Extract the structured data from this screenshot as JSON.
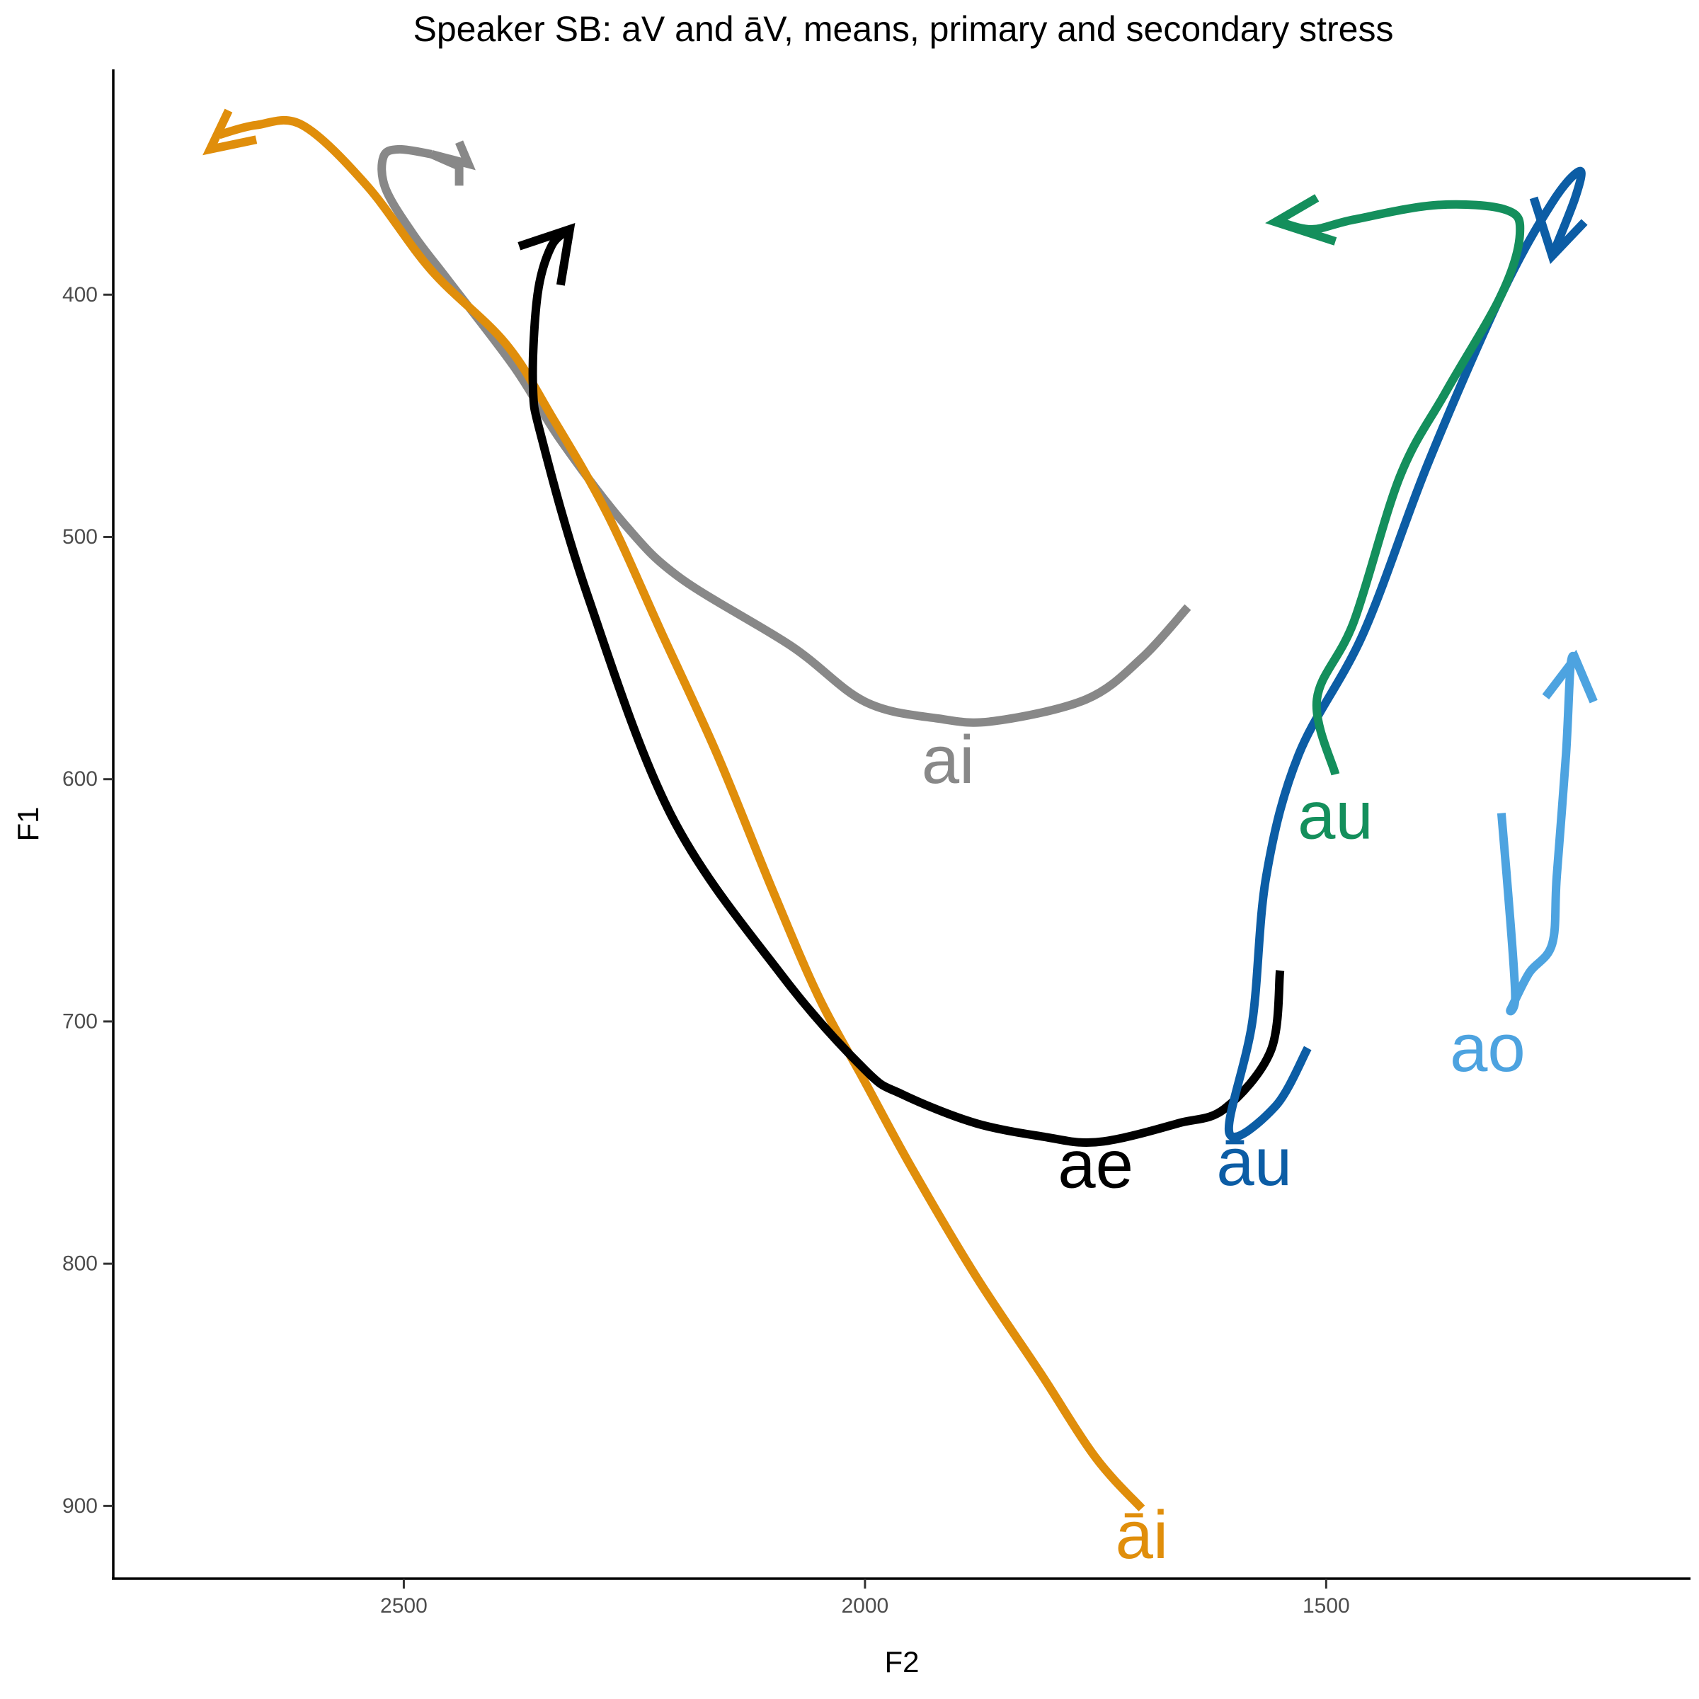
{
  "chart_data": {
    "type": "line",
    "title": "Speaker SB: aV and āV, means, primary and secondary stress",
    "xlabel": "F2",
    "ylabel": "F1",
    "x_reversed": true,
    "y_reversed": true,
    "xlim": [
      2815,
      1105
    ],
    "ylim": [
      307,
      930
    ],
    "x_ticks": [
      2500,
      2000,
      1500
    ],
    "y_ticks": [
      400,
      500,
      600,
      700,
      800,
      900
    ],
    "grid": false,
    "legend": "none",
    "series": [
      {
        "name": "ai",
        "color": "#888888",
        "label_at": [
          1910,
          592
        ],
        "points": [
          [
            1650,
            529
          ],
          [
            1700,
            550
          ],
          [
            1760,
            567
          ],
          [
            1860,
            576
          ],
          [
            1920,
            575
          ],
          [
            2000,
            568
          ],
          [
            2080,
            545
          ],
          [
            2200,
            517
          ],
          [
            2260,
            495
          ],
          [
            2330,
            460
          ],
          [
            2380,
            430
          ],
          [
            2450,
            395
          ],
          [
            2490,
            375
          ],
          [
            2520,
            356
          ],
          [
            2522,
            343
          ],
          [
            2505,
            340
          ],
          [
            2470,
            342
          ]
        ],
        "arrow_tip": [
          2470,
          342
        ],
        "arrow_heads": [
          [
            2440,
            337
          ],
          [
            2430,
            346
          ],
          [
            2470,
            342
          ],
          [
            2440,
            347
          ],
          [
            2440,
            355
          ]
        ]
      },
      {
        "name": "āi",
        "color": "#e08e0b",
        "label_at": [
          1700,
          912
        ],
        "points": [
          [
            1700,
            901
          ],
          [
            1750,
            880
          ],
          [
            1810,
            845
          ],
          [
            1880,
            805
          ],
          [
            1950,
            760
          ],
          [
            2000,
            725
          ],
          [
            2050,
            690
          ],
          [
            2100,
            646
          ],
          [
            2160,
            590
          ],
          [
            2220,
            540
          ],
          [
            2280,
            490
          ],
          [
            2340,
            450
          ],
          [
            2390,
            420
          ],
          [
            2470,
            390
          ],
          [
            2540,
            355
          ],
          [
            2610,
            330
          ],
          [
            2660,
            330
          ],
          [
            2700,
            334
          ]
        ],
        "arrow_tip": [
          2710,
          340
        ],
        "arrow_heads": [
          [
            2690,
            324
          ],
          [
            2710,
            340
          ],
          [
            2660,
            336
          ]
        ]
      },
      {
        "name": "ae",
        "color": "#000000",
        "label_at": [
          1750,
          759
        ],
        "points": [
          [
            1550,
            679
          ],
          [
            1560,
            712
          ],
          [
            1610,
            736
          ],
          [
            1660,
            742
          ],
          [
            1720,
            748
          ],
          [
            1760,
            750
          ],
          [
            1800,
            748
          ],
          [
            1880,
            742
          ],
          [
            1960,
            730
          ],
          [
            2000,
            720
          ],
          [
            2090,
            681
          ],
          [
            2210,
            615
          ],
          [
            2300,
            525
          ],
          [
            2350,
            460
          ],
          [
            2360,
            437
          ],
          [
            2355,
            400
          ],
          [
            2340,
            380
          ],
          [
            2320,
            373
          ]
        ],
        "arrow_tip": [
          2320,
          373
        ],
        "arrow_heads": [
          [
            2375,
            380
          ],
          [
            2320,
            373
          ],
          [
            2330,
            396
          ]
        ]
      },
      {
        "name": "āu",
        "color": "#0c5da5",
        "label_at": [
          1578,
          758
        ],
        "points": [
          [
            1520,
            711
          ],
          [
            1555,
            735
          ],
          [
            1605,
            746
          ],
          [
            1580,
            700
          ],
          [
            1565,
            640
          ],
          [
            1530,
            590
          ],
          [
            1460,
            540
          ],
          [
            1390,
            470
          ],
          [
            1310,
            400
          ],
          [
            1255,
            362
          ],
          [
            1225,
            349
          ],
          [
            1230,
            360
          ],
          [
            1255,
            384
          ]
        ],
        "arrow_tip": [
          1255,
          384
        ],
        "arrow_heads": [
          [
            1275,
            360
          ],
          [
            1255,
            384
          ],
          [
            1220,
            370
          ]
        ]
      },
      {
        "name": "au",
        "color": "#148f5c",
        "label_at": [
          1490,
          615
        ],
        "points": [
          [
            1490,
            598
          ],
          [
            1510,
            567
          ],
          [
            1470,
            535
          ],
          [
            1420,
            475
          ],
          [
            1370,
            440
          ],
          [
            1310,
            400
          ],
          [
            1290,
            375
          ],
          [
            1305,
            365
          ],
          [
            1380,
            363
          ],
          [
            1470,
            369
          ],
          [
            1515,
            373
          ],
          [
            1550,
            370
          ]
        ],
        "arrow_tip": [
          1555,
          370
        ],
        "arrow_heads": [
          [
            1510,
            360
          ],
          [
            1555,
            370
          ],
          [
            1490,
            378
          ]
        ]
      },
      {
        "name": "ao",
        "color": "#4da3e0",
        "label_at": [
          1325,
          711
        ],
        "points": [
          [
            1310,
            614
          ],
          [
            1300,
            660
          ],
          [
            1295,
            690
          ],
          [
            1300,
            695
          ],
          [
            1280,
            680
          ],
          [
            1255,
            668
          ],
          [
            1250,
            640
          ],
          [
            1240,
            590
          ],
          [
            1235,
            553
          ],
          [
            1230,
            550
          ]
        ],
        "arrow_tip": [
          1230,
          550
        ],
        "arrow_heads": [
          [
            1262,
            566
          ],
          [
            1230,
            550
          ],
          [
            1210,
            568
          ]
        ]
      }
    ]
  }
}
